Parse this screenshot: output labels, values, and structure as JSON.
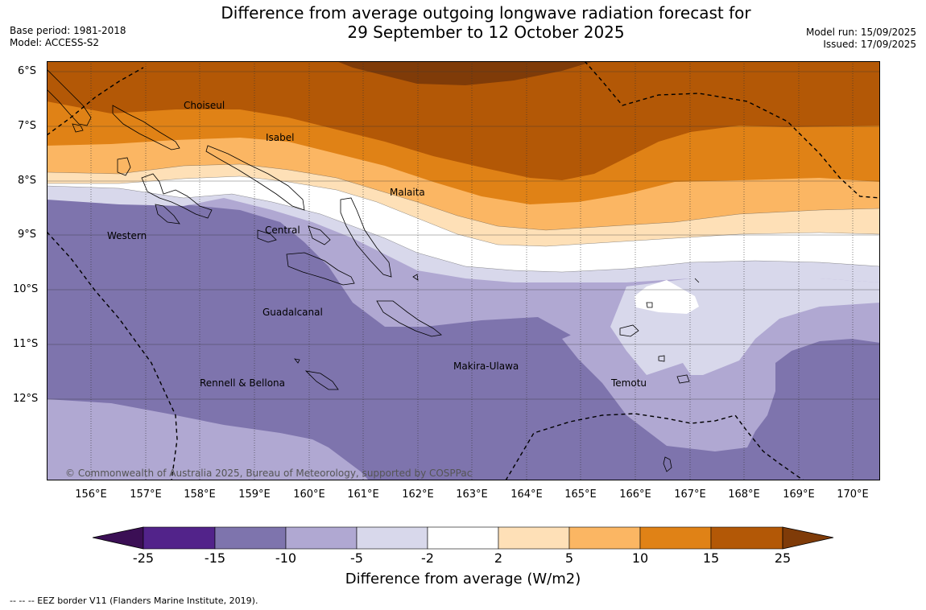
{
  "header": {
    "title_line1": "Difference from average outgoing longwave radiation forecast for",
    "title_line2": "29 September to 12 October 2025",
    "base_period": "Base period: 1981-2018",
    "model": "Model: ACCESS-S2",
    "model_run": "Model run: 15/09/2025",
    "issued": "Issued: 17/09/2025"
  },
  "axes": {
    "lat_labels": [
      "6°S",
      "7°S",
      "8°S",
      "9°S",
      "10°S",
      "11°S",
      "12°S"
    ],
    "lon_labels": [
      "156°E",
      "157°E",
      "158°E",
      "159°E",
      "160°E",
      "161°E",
      "162°E",
      "163°E",
      "164°E",
      "165°E",
      "166°E",
      "167°E",
      "168°E",
      "169°E",
      "170°E"
    ]
  },
  "provinces": [
    {
      "name": "Choiseul"
    },
    {
      "name": "Isabel"
    },
    {
      "name": "Malaita"
    },
    {
      "name": "Western"
    },
    {
      "name": "Central"
    },
    {
      "name": "Guadalcanal"
    },
    {
      "name": "Makira-Ulawa"
    },
    {
      "name": "Temotu"
    },
    {
      "name": "Rennell & Bellona"
    }
  ],
  "copyright": "© Commonwealth of Australia 2025, Bureau of Meteorology, supported by COSPPac",
  "legend": {
    "ticks": [
      "-25",
      "-15",
      "-10",
      "-5",
      "-2",
      "2",
      "5",
      "10",
      "15",
      "25"
    ],
    "colors": [
      "#3b0f55",
      "#52238a",
      "#7e74ad",
      "#b0a8d2",
      "#d8d8eb",
      "#ffffff",
      "#fee0b7",
      "#fbb663",
      "#e08216",
      "#b35806",
      "#7f3b08"
    ],
    "title": "Difference from average (W/m2)"
  },
  "footnote": "--  --  -- EEZ border V11 (Flanders Marine Institute, 2019)."
}
